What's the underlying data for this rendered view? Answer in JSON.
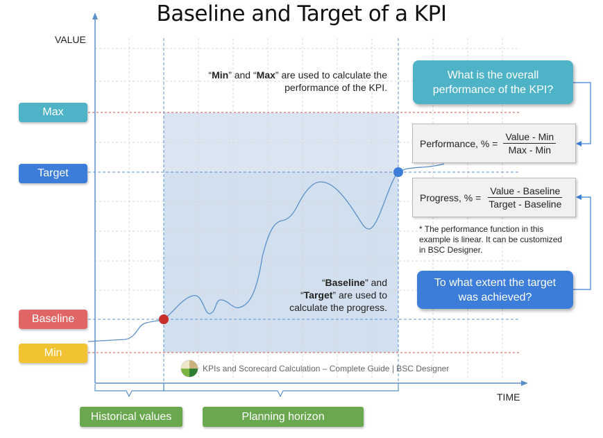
{
  "title": "Baseline and Target of a KPI",
  "axes": {
    "y_label": "VALUE",
    "x_label": "TIME"
  },
  "levels": {
    "max": {
      "label": "Max",
      "color": "#4fb3c7"
    },
    "target": {
      "label": "Target",
      "color": "#3b7dd8"
    },
    "baseline": {
      "label": "Baseline",
      "color": "#e06666"
    },
    "min": {
      "label": "Min",
      "color": "#f1c232"
    }
  },
  "notes": {
    "min_max": {
      "q1": "“",
      "b1": "Min",
      "t1": "” and “",
      "b2": "Max",
      "t2": "” are used to calculate the",
      "line2": "performance of the KPI."
    },
    "baseline_target": {
      "q1": "“",
      "b1": "Baseline",
      "t1": "” and",
      "q2": "“",
      "b2": "Target",
      "t2": "” are used to",
      "line3": "calculate the progress."
    }
  },
  "callouts": {
    "performance_question": {
      "text": "What is the overall performance of the KPI?",
      "color": "#4fb3c7"
    },
    "progress_question": {
      "text": "To what extent the target was achieved?",
      "color": "#3b7dd8"
    }
  },
  "formulas": {
    "performance": {
      "label": "Performance, % =",
      "numerator": "Value - Min",
      "denominator": "Max - Min"
    },
    "progress": {
      "label": "Progress, % =",
      "numerator": "Value - Baseline",
      "denominator": "Target - Baseline"
    }
  },
  "footnote": "* The performance function in this example is linear.  It can be customized in BSC Designer.",
  "watermark": "KPIs and Scorecard Calculation – Complete Guide | BSC Designer",
  "periods": {
    "historical": {
      "label": "Historical values"
    },
    "planning": {
      "label": "Planning horizon"
    }
  },
  "colors": {
    "planning_area": "#dbe5f1",
    "curve": "#5b8fc9",
    "axis": "#5b8fc9",
    "max_min_lines": "#d9534f",
    "period_badge": "#6aa84f"
  }
}
